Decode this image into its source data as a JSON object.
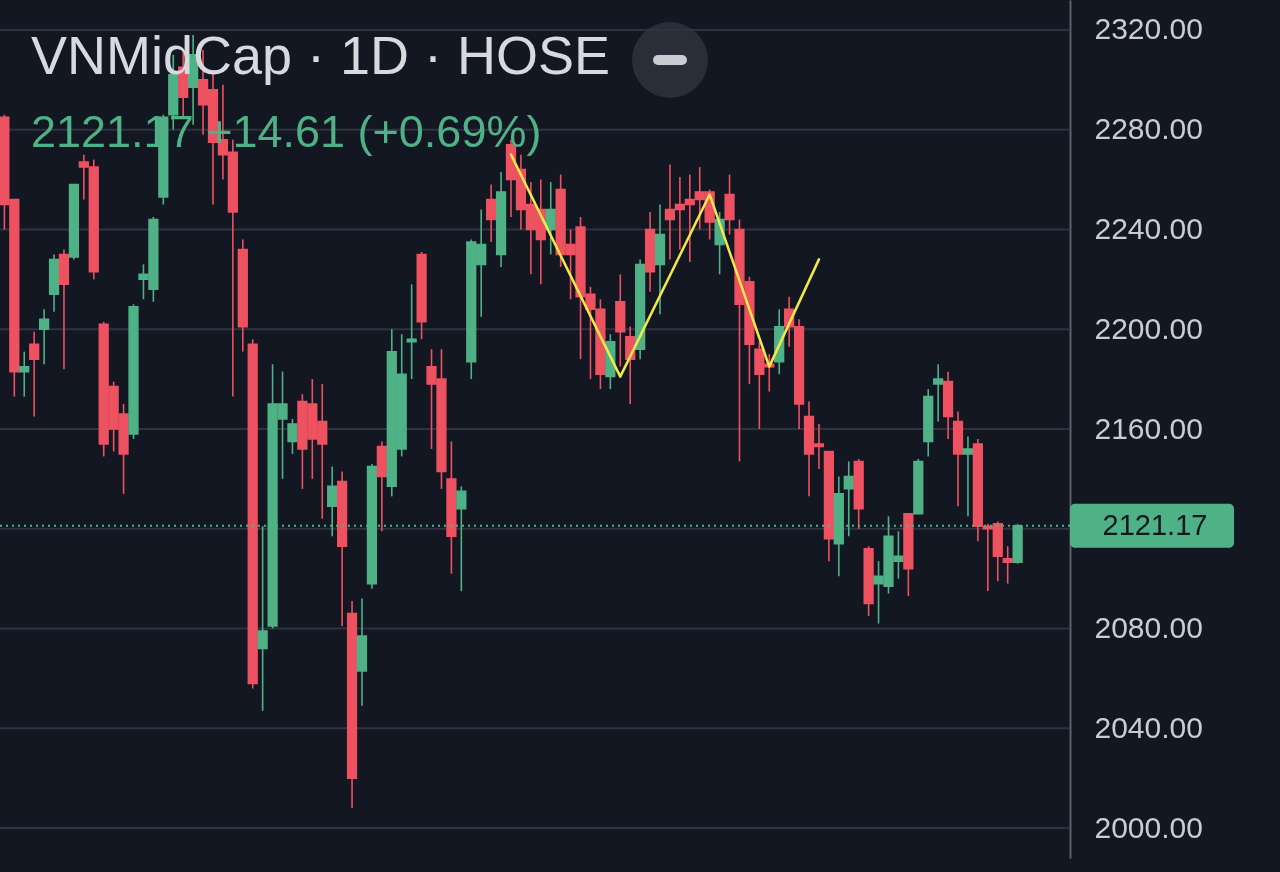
{
  "chart_data": {
    "type": "candlestick",
    "title": "VNMidCap · 1D · HOSE",
    "subtitle": "2121.17 +14.61 (+0.69%)",
    "categories": [
      null,
      null,
      null,
      null,
      null,
      null,
      null,
      null,
      null,
      null,
      null,
      null,
      null,
      null,
      null,
      null,
      null,
      null,
      null,
      null,
      null,
      null,
      null,
      null,
      null,
      null,
      null,
      null,
      null,
      null,
      null,
      null,
      null,
      null,
      null,
      null,
      null,
      null,
      null,
      null,
      null,
      null,
      null,
      null,
      null,
      null,
      null,
      null,
      null,
      null,
      null,
      null,
      null,
      null,
      null,
      null,
      null,
      null,
      null,
      null,
      null,
      null,
      null,
      null,
      null,
      null,
      null,
      null,
      null,
      null,
      null,
      null,
      null,
      null,
      null,
      null,
      null,
      null,
      null,
      null,
      null,
      null,
      null,
      null,
      null,
      null,
      null,
      null,
      null,
      null,
      null,
      null,
      null,
      null,
      null,
      null,
      null,
      null,
      null,
      null,
      null,
      null,
      null
    ],
    "ohlc": [
      [
        2285,
        2286,
        2240,
        2250
      ],
      [
        2252,
        2252,
        2173,
        2183
      ],
      [
        2183,
        2191,
        2173,
        2185
      ],
      [
        2194,
        2199,
        2165,
        2188
      ],
      [
        2200,
        2208,
        2186,
        2204
      ],
      [
        2214,
        2230,
        2207,
        2228
      ],
      [
        2230,
        2232,
        2184,
        2218
      ],
      [
        2229,
        2258,
        2228,
        2258
      ],
      [
        2267,
        2270,
        2252,
        2265
      ],
      [
        2265,
        2268,
        2220,
        2223
      ],
      [
        2202,
        2203,
        2149,
        2154
      ],
      [
        2177,
        2179,
        2151,
        2160
      ],
      [
        2166,
        2170,
        2134,
        2150
      ],
      [
        2158,
        2210,
        2156,
        2209
      ],
      [
        2220,
        2226,
        2212,
        2222
      ],
      [
        2216,
        2245,
        2211,
        2244
      ],
      [
        2253,
        2286,
        2250,
        2285
      ],
      [
        2286,
        2310,
        2280,
        2302
      ],
      [
        2305,
        2312,
        2285,
        2293
      ],
      [
        2297,
        2318,
        2282,
        2310
      ],
      [
        2300,
        2312,
        2278,
        2290
      ],
      [
        2296,
        2303,
        2250,
        2275
      ],
      [
        2276,
        2298,
        2260,
        2270
      ],
      [
        2271,
        2276,
        2173,
        2247
      ],
      [
        2232,
        2236,
        2191,
        2201
      ],
      [
        2194,
        2196,
        2056,
        2058
      ],
      [
        2072,
        2121,
        2047,
        2079
      ],
      [
        2081,
        2186,
        2080,
        2170
      ],
      [
        2164,
        2183,
        2140,
        2170
      ],
      [
        2155,
        2164,
        2150,
        2162
      ],
      [
        2171,
        2174,
        2136,
        2152
      ],
      [
        2170,
        2180,
        2140,
        2156
      ],
      [
        2163,
        2178,
        2124,
        2154
      ],
      [
        2129,
        2145,
        2117,
        2137
      ],
      [
        2139,
        2143,
        2081,
        2113
      ],
      [
        2086,
        2091,
        2008,
        2020
      ],
      [
        2063,
        2092,
        2049,
        2077
      ],
      [
        2098,
        2146,
        2096,
        2145
      ],
      [
        2153,
        2155,
        2119,
        2141
      ],
      [
        2137,
        2200,
        2133,
        2191
      ],
      [
        2152,
        2198,
        2149,
        2182
      ],
      [
        2195,
        2218,
        2180,
        2196
      ],
      [
        2230,
        2231,
        2196,
        2203
      ],
      [
        2185,
        2192,
        2152,
        2178
      ],
      [
        2180,
        2192,
        2136,
        2143
      ],
      [
        2140,
        2155,
        2102,
        2117
      ],
      [
        2128,
        2137,
        2095,
        2135
      ],
      [
        2187,
        2236,
        2180,
        2235
      ],
      [
        2226,
        2248,
        2205,
        2234
      ],
      [
        2252,
        2258,
        2235,
        2244
      ],
      [
        2230,
        2263,
        2225,
        2255
      ],
      [
        2274,
        2276,
        2245,
        2260
      ],
      [
        2264,
        2270,
        2240,
        2248
      ],
      [
        2250,
        2259,
        2222,
        2240
      ],
      [
        2248,
        2260,
        2218,
        2236
      ],
      [
        2240,
        2259,
        2230,
        2248
      ],
      [
        2256,
        2262,
        2225,
        2230
      ],
      [
        2234,
        2240,
        2212,
        2230
      ],
      [
        2241,
        2245,
        2188,
        2213
      ],
      [
        2214,
        2217,
        2180,
        2208
      ],
      [
        2208,
        2212,
        2176,
        2182
      ],
      [
        2181,
        2198,
        2176,
        2195
      ],
      [
        2211,
        2222,
        2185,
        2199
      ],
      [
        2197,
        2201,
        2170,
        2188
      ],
      [
        2192,
        2228,
        2188,
        2226
      ],
      [
        2240,
        2247,
        2215,
        2223
      ],
      [
        2226,
        2250,
        2206,
        2238
      ],
      [
        2248,
        2266,
        2228,
        2244
      ],
      [
        2250,
        2261,
        2232,
        2248
      ],
      [
        2252,
        2262,
        2227,
        2250
      ],
      [
        2255,
        2265,
        2240,
        2252
      ],
      [
        2255,
        2256,
        2236,
        2243
      ],
      [
        2234,
        2247,
        2222,
        2244
      ],
      [
        2254,
        2262,
        2238,
        2244
      ],
      [
        2240,
        2244,
        2147,
        2210
      ],
      [
        2219,
        2221,
        2178,
        2194
      ],
      [
        2192,
        2195,
        2160,
        2182
      ],
      [
        2186,
        2190,
        2175,
        2185
      ],
      [
        2187,
        2208,
        2182,
        2201
      ],
      [
        2208,
        2213,
        2193,
        2201
      ],
      [
        2201,
        2204,
        2160,
        2170
      ],
      [
        2165,
        2171,
        2133,
        2150
      ],
      [
        2154,
        2162,
        2144,
        2153
      ],
      [
        2151,
        2151,
        2107,
        2116
      ],
      [
        2114,
        2141,
        2101,
        2134
      ],
      [
        2136,
        2147,
        2117,
        2141
      ],
      [
        2147,
        2148,
        2120,
        2128
      ],
      [
        2112,
        2113,
        2085,
        2090
      ],
      [
        2098,
        2107,
        2082,
        2101
      ],
      [
        2097,
        2125,
        2094,
        2117
      ],
      [
        2107,
        2119,
        2100,
        2109
      ],
      [
        2126,
        2126,
        2093,
        2104
      ],
      [
        2126,
        2148,
        2126,
        2147
      ],
      [
        2155,
        2176,
        2149,
        2173
      ],
      [
        2178,
        2186,
        2163,
        2180
      ],
      [
        2179,
        2183,
        2156,
        2165
      ],
      [
        2163,
        2167,
        2129,
        2150
      ],
      [
        2150,
        2157,
        2125,
        2152
      ],
      [
        2154,
        2156,
        2115,
        2121
      ],
      [
        2121,
        2122,
        2095,
        2120
      ],
      [
        2122,
        2123,
        2099,
        2109
      ],
      [
        2108,
        2113,
        2098,
        2106.56
      ],
      [
        2106.56,
        2122,
        2106,
        2121.17
      ]
    ],
    "colors": [
      "#ee5160",
      "#ee5160",
      "#4fb286",
      "#ee5160",
      "#4fb286",
      "#4fb286",
      "#ee5160",
      "#4fb286",
      "#ee5160",
      "#ee5160",
      "#ee5160",
      "#ee5160",
      "#ee5160",
      "#4fb286",
      "#4fb286",
      "#4fb286",
      "#4fb286",
      "#4fb286",
      "#ee5160",
      "#4fb286",
      "#ee5160",
      "#ee5160",
      "#ee5160",
      "#ee5160",
      "#ee5160",
      "#ee5160",
      "#4fb286",
      "#4fb286",
      "#4fb286",
      "#4fb286",
      "#ee5160",
      "#ee5160",
      "#ee5160",
      "#4fb286",
      "#ee5160",
      "#ee5160",
      "#4fb286",
      "#4fb286",
      "#ee5160",
      "#4fb286",
      "#4fb286",
      "#4fb286",
      "#ee5160",
      "#ee5160",
      "#ee5160",
      "#ee5160",
      "#4fb286",
      "#4fb286",
      "#4fb286",
      "#ee5160",
      "#4fb286",
      "#ee5160",
      "#ee5160",
      "#ee5160",
      "#ee5160",
      "#4fb286",
      "#ee5160",
      "#ee5160",
      "#ee5160",
      "#ee5160",
      "#ee5160",
      "#4fb286",
      "#ee5160",
      "#ee5160",
      "#4fb286",
      "#ee5160",
      "#4fb286",
      "#ee5160",
      "#ee5160",
      "#ee5160",
      "#ee5160",
      "#ee5160",
      "#4fb286",
      "#ee5160",
      "#ee5160",
      "#ee5160",
      "#ee5160",
      "#ee5160",
      "#4fb286",
      "#ee5160",
      "#ee5160",
      "#ee5160",
      "#ee5160",
      "#ee5160",
      "#4fb286",
      "#4fb286",
      "#ee5160",
      "#ee5160",
      "#4fb286",
      "#4fb286",
      "#4fb286",
      "#ee5160",
      "#4fb286",
      "#4fb286",
      "#4fb286",
      "#ee5160",
      "#ee5160",
      "#4fb286",
      "#ee5160",
      "#ee5160",
      "#ee5160",
      "#ee5160",
      "#4fb286"
    ],
    "series": [
      {
        "type": "line",
        "color": "#f2e84a",
        "values": [
          null,
          null,
          null,
          null,
          null,
          null,
          null,
          null,
          null,
          null,
          null,
          null,
          null,
          null,
          null,
          null,
          null,
          null,
          null,
          null,
          null,
          null,
          null,
          null,
          null,
          null,
          null,
          null,
          null,
          null,
          null,
          null,
          null,
          null,
          null,
          null,
          null,
          null,
          null,
          null,
          null,
          null,
          null,
          null,
          null,
          null,
          null,
          null,
          null,
          null,
          null,
          2270,
          null,
          null,
          null,
          null,
          null,
          null,
          null,
          null,
          null,
          null,
          2181,
          null,
          null,
          null,
          null,
          null,
          null,
          null,
          null,
          2254,
          null,
          null,
          null,
          null,
          null,
          2185,
          null,
          null,
          null,
          null,
          2228,
          null,
          null,
          null,
          null,
          null,
          null,
          null,
          null,
          null,
          null,
          null,
          null,
          null,
          null,
          null,
          null,
          null,
          null,
          null,
          null
        ]
      }
    ],
    "ylim": [
      1988,
      2332
    ],
    "yticks": [
      {
        "value": 2000,
        "label": "2000.00"
      },
      {
        "value": 2040,
        "label": "2040.00"
      },
      {
        "value": 2080,
        "label": "2080.00"
      },
      {
        "value": 2120,
        "label": null
      },
      {
        "value": 2160,
        "label": "2160.00"
      },
      {
        "value": 2200,
        "label": "2200.00"
      },
      {
        "value": 2240,
        "label": "2240.00"
      },
      {
        "value": 2280,
        "label": "2280.00"
      },
      {
        "value": 2320,
        "label": "2320.00"
      }
    ],
    "grid": "y",
    "ref_lines": [
      {
        "axis": "y",
        "value": 2121.17,
        "label": "2121.17",
        "color": "#4fb286",
        "line_style": "dotted"
      }
    ]
  }
}
